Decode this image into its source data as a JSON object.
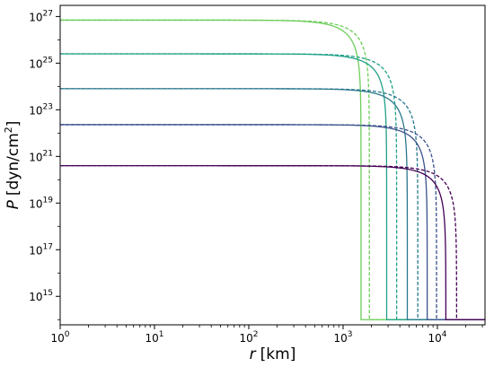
{
  "chart_data": {
    "type": "line",
    "xlabel_var": "r",
    "xlabel_unit": "[km]",
    "ylabel_var": "P",
    "ylabel_unit_prefix": "[dyn/cm",
    "ylabel_unit_exp": "2",
    "ylabel_unit_suffix": "]",
    "xscale": "log",
    "yscale": "log",
    "xlim": [
      1,
      32000
    ],
    "ylim": [
      60000000000000.0,
      3e+27
    ],
    "floor": 100000000000000.0,
    "grid": false,
    "legend": "none",
    "x_ticks": [
      {
        "value": 1,
        "base": "10",
        "exp": "0"
      },
      {
        "value": 10,
        "base": "10",
        "exp": "1"
      },
      {
        "value": 100,
        "base": "10",
        "exp": "2"
      },
      {
        "value": 1000,
        "base": "10",
        "exp": "3"
      },
      {
        "value": 10000,
        "base": "10",
        "exp": "4"
      }
    ],
    "y_ticks": [
      {
        "value": 1000000000000000.0,
        "base": "10",
        "exp": "15"
      },
      {
        "value": 1e+17,
        "base": "10",
        "exp": "17"
      },
      {
        "value": 1e+19,
        "base": "10",
        "exp": "19"
      },
      {
        "value": 1e+21,
        "base": "10",
        "exp": "21"
      },
      {
        "value": 1e+23,
        "base": "10",
        "exp": "23"
      },
      {
        "value": 1e+25,
        "base": "10",
        "exp": "25"
      },
      {
        "value": 1e+27,
        "base": "10",
        "exp": "27"
      }
    ],
    "series": [
      {
        "color": "#6ecd5a",
        "style": "solid",
        "p0": 7e+26,
        "r_end": 1550
      },
      {
        "color": "#6ecd5a",
        "style": "dashed",
        "p0": 7e+26,
        "r_end": 1900
      },
      {
        "color": "#1fa187",
        "style": "solid",
        "p0": 2.5e+25,
        "r_end": 2900
      },
      {
        "color": "#1fa187",
        "style": "dashed",
        "p0": 2.5e+25,
        "r_end": 3700
      },
      {
        "color": "#2a788e",
        "style": "solid",
        "p0": 8e+23,
        "r_end": 4800
      },
      {
        "color": "#2a788e",
        "style": "dashed",
        "p0": 8e+23,
        "r_end": 6200
      },
      {
        "color": "#3b528b",
        "style": "solid",
        "p0": 2.3e+22,
        "r_end": 7800
      },
      {
        "color": "#3b528b",
        "style": "dashed",
        "p0": 2.3e+22,
        "r_end": 9800
      },
      {
        "color": "#440154",
        "style": "solid",
        "p0": 4e+20,
        "r_end": 12300
      },
      {
        "color": "#440154",
        "style": "dashed",
        "p0": 4e+20,
        "r_end": 16000
      }
    ]
  }
}
